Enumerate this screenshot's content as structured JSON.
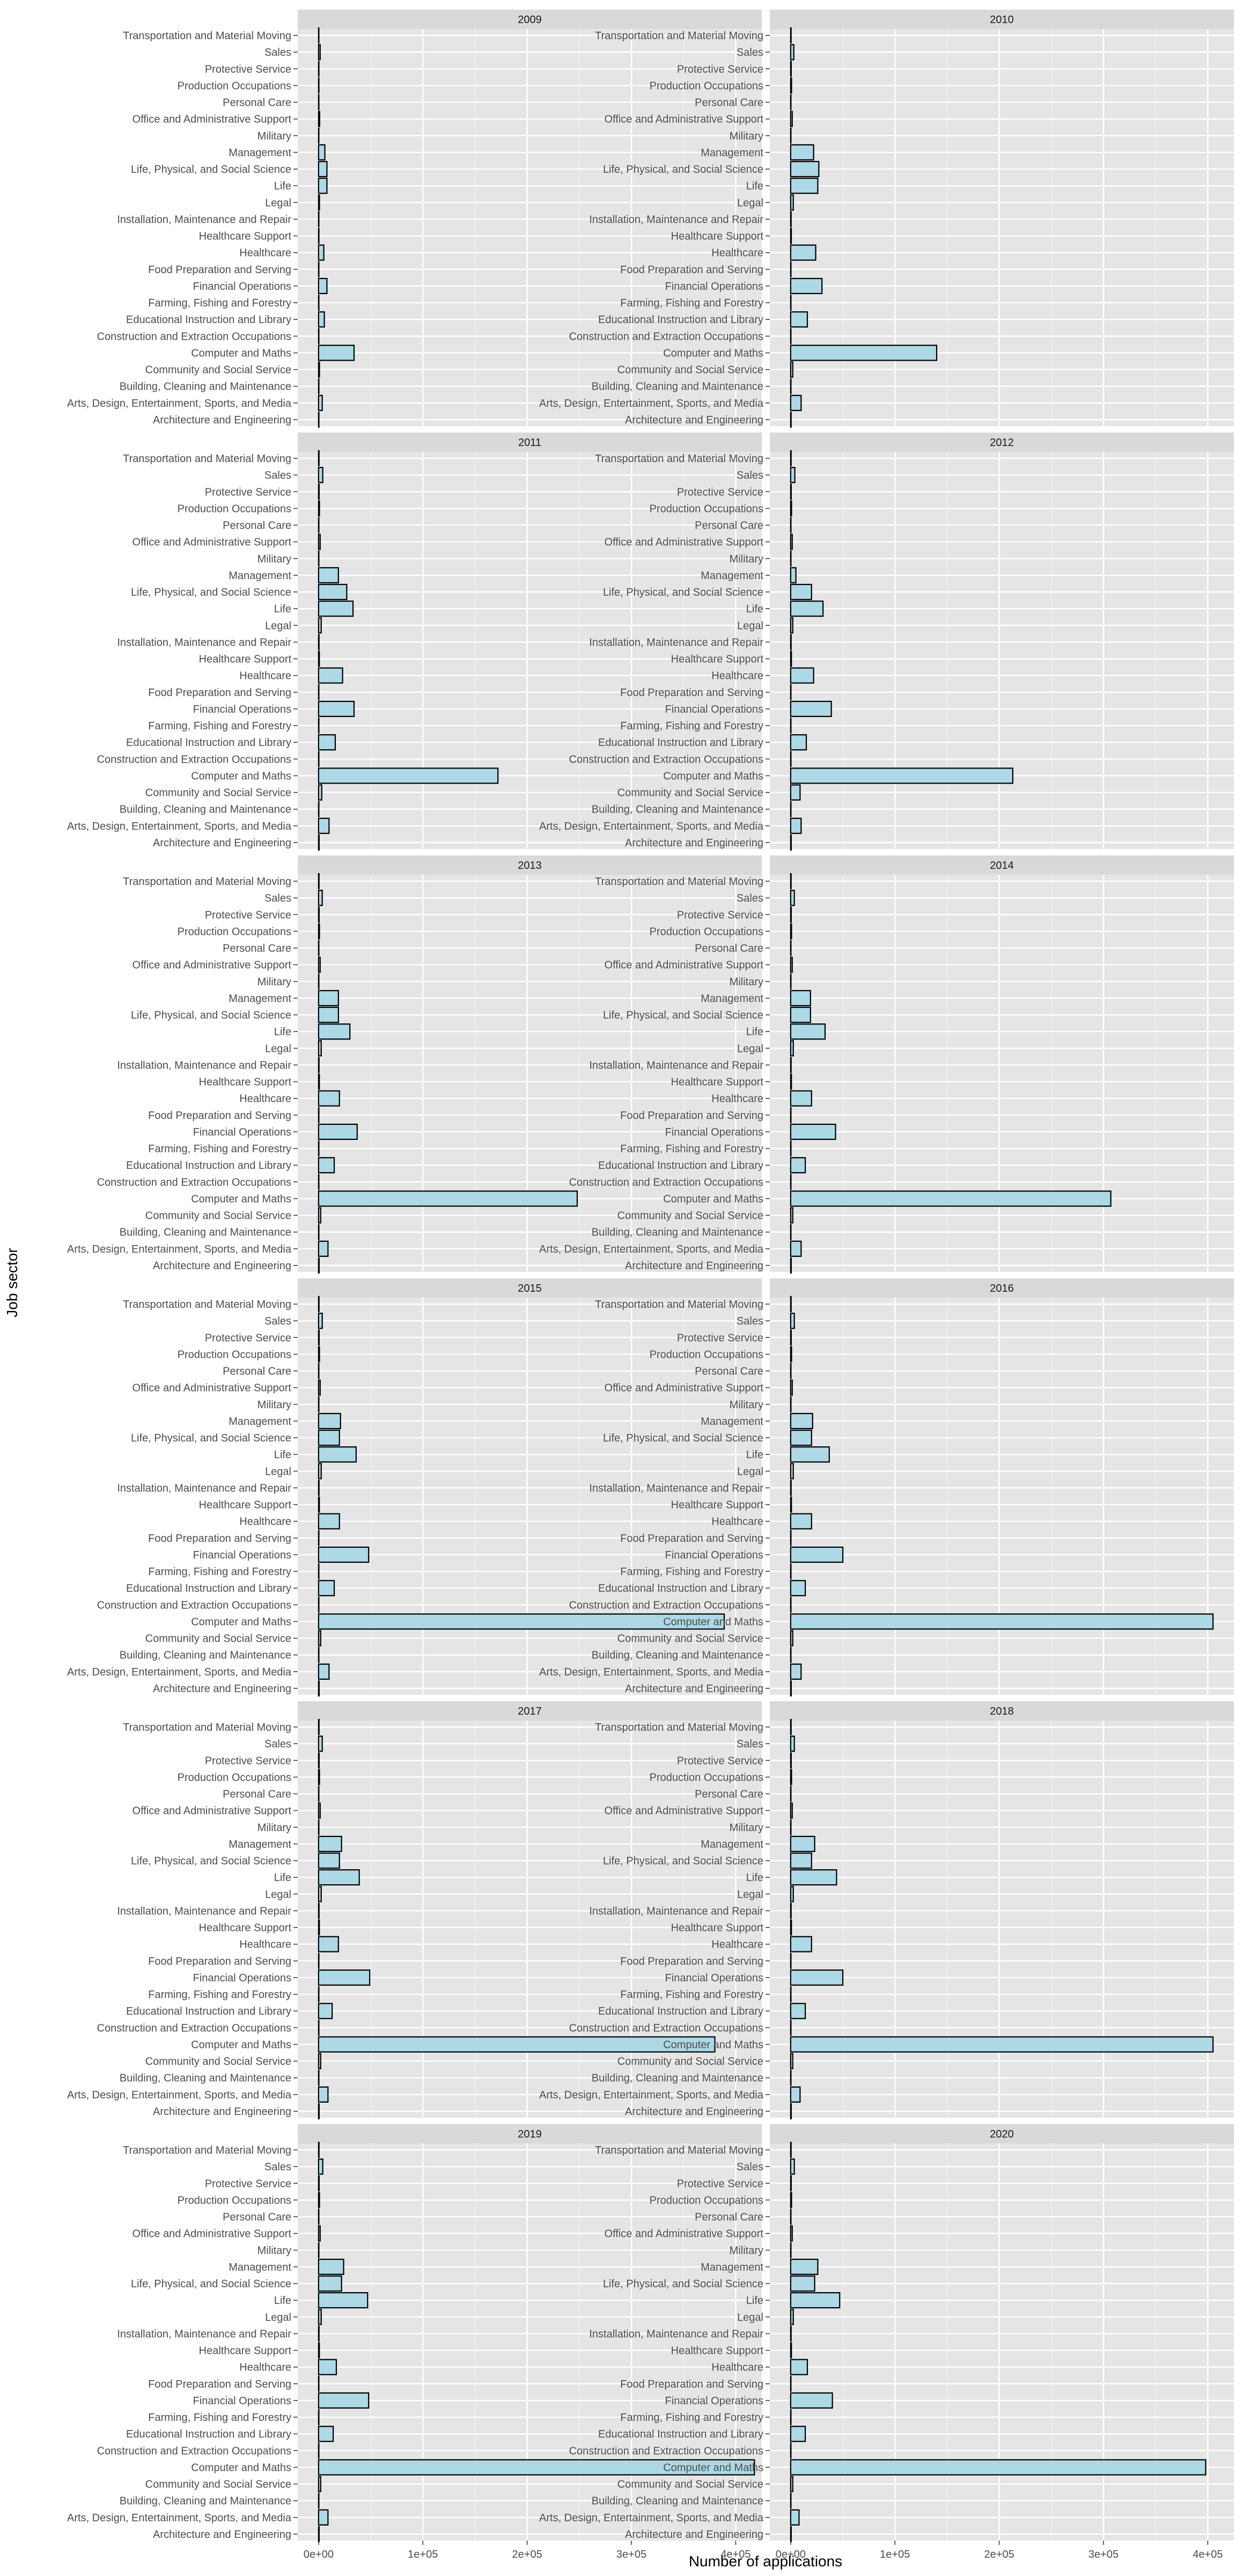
{
  "chart_data": {
    "type": "bar",
    "orientation": "horizontal",
    "facet_layout": "6 rows x 2 columns",
    "xlabel": "Number of applications",
    "ylabel": "Job sector",
    "xlim": [
      -20000,
      425000
    ],
    "x_ticks": [
      0,
      100000,
      200000,
      300000,
      400000
    ],
    "x_tick_labels": [
      "0e+00",
      "1e+05",
      "2e+05",
      "3e+05",
      "4e+05"
    ],
    "grid": true,
    "bar_fill": "#add8e6",
    "bar_outline": "#000000",
    "panel_background": "#e5e5e5",
    "strip_background": "#d9d9d9",
    "categories": [
      "Architecture and Engineering",
      "Arts, Design, Entertainment, Sports, and Media",
      "Building, Cleaning and Maintenance",
      "Community and Social Service",
      "Computer and Maths",
      "Construction and Extraction Occupations",
      "Educational Instruction and Library",
      "Farming, Fishing and Forestry",
      "Financial Operations",
      "Food Preparation and Serving",
      "Healthcare",
      "Healthcare Support",
      "Installation, Maintenance and Repair",
      "Legal",
      "Life",
      "Life, Physical, and Social Science",
      "Management",
      "Military",
      "Office and Administrative Support",
      "Personal Care",
      "Production Occupations",
      "Protective Service",
      "Sales",
      "Transportation and Material Moving"
    ],
    "panels": [
      {
        "year": "2009",
        "values": [
          300,
          3500,
          100,
          800,
          34000,
          100,
          5500,
          100,
          8000,
          100,
          5000,
          300,
          200,
          800,
          8000,
          8000,
          6000,
          100,
          1000,
          100,
          300,
          300,
          1500,
          200
        ]
      },
      {
        "year": "2010",
        "values": [
          400,
          10000,
          200,
          2000,
          140000,
          200,
          16000,
          200,
          30000,
          200,
          24000,
          600,
          400,
          2500,
          26000,
          27000,
          22000,
          100,
          1500,
          200,
          800,
          500,
          3000,
          400
        ]
      },
      {
        "year": "2011",
        "values": [
          500,
          10000,
          200,
          3000,
          172000,
          200,
          16000,
          200,
          34000,
          200,
          23000,
          700,
          400,
          2500,
          33000,
          27000,
          19000,
          100,
          1500,
          200,
          800,
          500,
          4000,
          400
        ]
      },
      {
        "year": "2012",
        "values": [
          500,
          10000,
          200,
          9000,
          213000,
          200,
          15000,
          200,
          39000,
          200,
          22000,
          700,
          400,
          2000,
          31000,
          20000,
          5000,
          100,
          1500,
          200,
          800,
          500,
          4000,
          400
        ]
      },
      {
        "year": "2013",
        "values": [
          500,
          9000,
          200,
          2000,
          248000,
          200,
          15000,
          200,
          37000,
          200,
          20000,
          700,
          400,
          2500,
          30000,
          19000,
          19000,
          100,
          1500,
          200,
          800,
          500,
          3500,
          400
        ]
      },
      {
        "year": "2014",
        "values": [
          500,
          10000,
          200,
          2000,
          307000,
          200,
          14000,
          200,
          43000,
          200,
          20000,
          700,
          400,
          2500,
          33000,
          19000,
          19000,
          100,
          1500,
          200,
          800,
          500,
          3500,
          400
        ]
      },
      {
        "year": "2015",
        "values": [
          500,
          10000,
          200,
          2000,
          389000,
          200,
          15000,
          200,
          48000,
          200,
          20000,
          700,
          400,
          2500,
          36000,
          20000,
          21000,
          100,
          1500,
          200,
          800,
          500,
          3500,
          400
        ]
      },
      {
        "year": "2016",
        "values": [
          500,
          10000,
          200,
          2000,
          405000,
          200,
          14000,
          200,
          50000,
          200,
          20000,
          700,
          400,
          2500,
          37000,
          20000,
          21000,
          100,
          1500,
          200,
          800,
          500,
          3500,
          400
        ]
      },
      {
        "year": "2017",
        "values": [
          500,
          9000,
          200,
          2000,
          380000,
          200,
          13000,
          200,
          49000,
          200,
          19000,
          700,
          400,
          2500,
          39000,
          20000,
          22000,
          100,
          1500,
          200,
          800,
          500,
          3500,
          400
        ]
      },
      {
        "year": "2018",
        "values": [
          500,
          9000,
          200,
          2000,
          405000,
          200,
          14000,
          200,
          50000,
          200,
          20000,
          700,
          400,
          2500,
          44000,
          20000,
          23000,
          100,
          1500,
          200,
          800,
          500,
          3500,
          400
        ]
      },
      {
        "year": "2019",
        "values": [
          500,
          9000,
          200,
          2000,
          418000,
          200,
          14000,
          200,
          48000,
          200,
          17000,
          700,
          400,
          2500,
          47000,
          22000,
          24000,
          100,
          1500,
          200,
          800,
          500,
          4000,
          400
        ]
      },
      {
        "year": "2020",
        "values": [
          500,
          8000,
          200,
          2000,
          398000,
          200,
          14000,
          200,
          40000,
          200,
          16000,
          700,
          400,
          2500,
          47000,
          23000,
          26000,
          100,
          1500,
          200,
          800,
          500,
          3500,
          400
        ]
      }
    ]
  }
}
